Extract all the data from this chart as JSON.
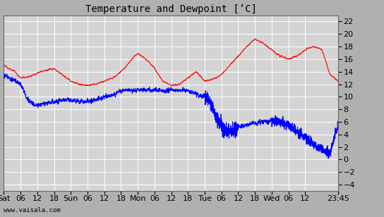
{
  "title": "Temperature and Dewpoint [ʼC]",
  "yticks": [
    -4,
    -2,
    0,
    2,
    4,
    6,
    8,
    10,
    12,
    14,
    16,
    18,
    20,
    22
  ],
  "ylim": [
    -5.0,
    23.0
  ],
  "xtick_labels": [
    "Sat",
    "06",
    "12",
    "18",
    "Sun",
    "06",
    "12",
    "18",
    "Mon",
    "06",
    "12",
    "18",
    "Tue",
    "06",
    "12",
    "18",
    "Wed",
    "06",
    "12",
    "23:45"
  ],
  "xtick_positions": [
    0,
    6,
    12,
    18,
    24,
    30,
    36,
    42,
    48,
    54,
    60,
    66,
    72,
    78,
    84,
    90,
    96,
    102,
    108,
    119.75
  ],
  "total_hours": 119.75,
  "outer_bg": "#b0b0b0",
  "plot_bg_color": "#d4d4d4",
  "grid_color": "#ffffff",
  "temp_color": "#ff0000",
  "dewp_color": "#0000ff",
  "line_width": 0.8,
  "watermark": "www.vaisala.com",
  "title_fontsize": 10,
  "tick_fontsize": 8
}
